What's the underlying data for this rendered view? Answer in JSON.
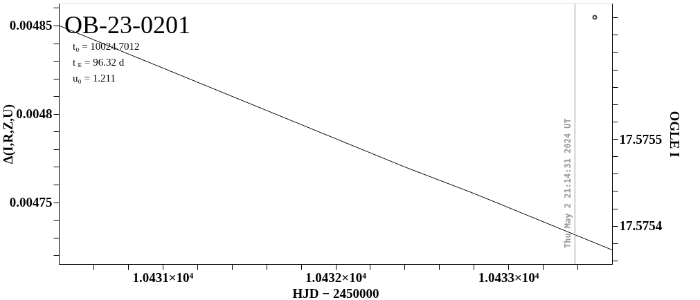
{
  "chart_data": {
    "type": "line",
    "title": "OB-23-0201",
    "xlabel": "HJD − 2450000",
    "ylabel": "Δ(I,R,Z,U)",
    "y2label": "OGLE I",
    "xlim": [
      10430.4,
      10433.6
    ],
    "ylim": [
      0.004715,
      0.0048625
    ],
    "y2lim": [
      17.575356,
      17.575656
    ],
    "xticks": [
      {
        "value": 10430.6,
        "label": null
      },
      {
        "value": 10430.8,
        "label": null
      },
      {
        "value": 10431,
        "label": "1.0431×10⁴"
      },
      {
        "value": 10431.2,
        "label": null
      },
      {
        "value": 10431.4,
        "label": null
      },
      {
        "value": 10431.6,
        "label": null
      },
      {
        "value": 10431.8,
        "label": null
      },
      {
        "value": 10432,
        "label": "1.0432×10⁴"
      },
      {
        "value": 10432.2,
        "label": null
      },
      {
        "value": 10432.4,
        "label": null
      },
      {
        "value": 10432.6,
        "label": null
      },
      {
        "value": 10432.8,
        "label": null
      },
      {
        "value": 10433,
        "label": "1.0433×10⁴"
      },
      {
        "value": 10433.2,
        "label": null
      },
      {
        "value": 10433.4,
        "label": null
      }
    ],
    "yticks": [
      {
        "value": 0.00472,
        "label": null
      },
      {
        "value": 0.00473,
        "label": null
      },
      {
        "value": 0.00474,
        "label": null
      },
      0.00475,
      {
        "value": 0.00476,
        "label": null
      },
      {
        "value": 0.00477,
        "label": null
      },
      {
        "value": 0.00478,
        "label": null
      },
      {
        "value": 0.00479,
        "label": null
      },
      0.0048,
      {
        "value": 0.00481,
        "label": null
      },
      {
        "value": 0.00482,
        "label": null
      },
      {
        "value": 0.00483,
        "label": null
      },
      {
        "value": 0.00484,
        "label": null
      },
      0.00485,
      {
        "value": 0.00486,
        "label": null
      }
    ],
    "y2ticks": [
      {
        "value": 17.57536,
        "label": null
      },
      {
        "value": 17.57538,
        "label": null
      },
      17.5754,
      {
        "value": 17.57542,
        "label": null
      },
      {
        "value": 17.57544,
        "label": null
      },
      {
        "value": 17.57546,
        "label": null
      },
      {
        "value": 17.57548,
        "label": null
      },
      17.5755,
      {
        "value": 17.57552,
        "label": null
      },
      {
        "value": 17.57554,
        "label": null
      },
      {
        "value": 17.57556,
        "label": null
      },
      {
        "value": 17.57558,
        "label": null
      },
      {
        "value": 17.5756,
        "label": null
      },
      {
        "value": 17.57562,
        "label": null
      },
      {
        "value": 17.57564,
        "label": null
      }
    ],
    "series": [
      {
        "type": "line",
        "color": "#000000",
        "x": [
          10430.4,
          10430.8,
          10431.2,
          10431.6,
          10432.0,
          10432.4,
          10432.8,
          10433.2,
          10433.6
        ],
        "values": [
          0.00485,
          0.004834,
          0.004818,
          0.004802,
          0.004786,
          0.00477,
          0.004755,
          0.004739,
          0.004723
        ]
      },
      {
        "type": "scatter",
        "axis": "y2",
        "marker": "circle",
        "color": "#000000",
        "x": [
          10433.5
        ],
        "values": [
          17.57564
        ]
      }
    ],
    "ref_lines": [
      {
        "axis": "x",
        "value": 10433.385,
        "color": "#999999"
      }
    ],
    "annotations": [
      "t₀ = 10024.7012",
      "t$_{E}$ = 96.32 d",
      "u₀ = 1.211",
      {
        "text": "Thu May  2 21:14:31 2024 UT",
        "x": 10433.385
      }
    ],
    "grid": false
  }
}
